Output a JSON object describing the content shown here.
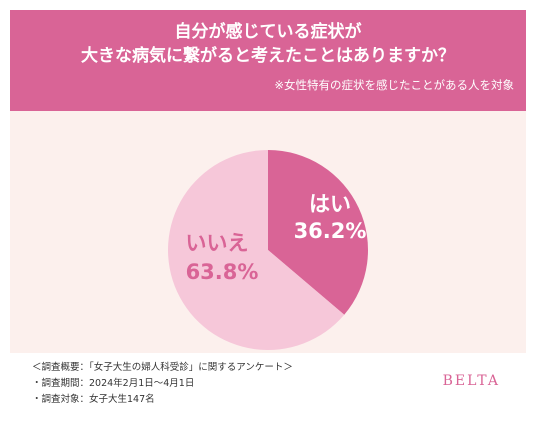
{
  "header": {
    "title_line1": "自分が感じている症状が",
    "title_line2": "大きな病気に繋がると考えたことはありますか？",
    "subtitle": "※女性特有の症状を感じたことがある人を対象"
  },
  "chart_data": {
    "type": "pie",
    "title": "自分が感じている症状が大きな病気に繋がると考えたことはありますか？",
    "slices": [
      {
        "label": "はい",
        "value": 36.2,
        "value_label": "36.2%",
        "color": "#d96496"
      },
      {
        "label": "いいえ",
        "value": 63.8,
        "value_label": "63.8%",
        "color": "#f6c7d9"
      }
    ],
    "label_colors": {
      "はい": "#ffffff",
      "いいえ": "#d96496"
    },
    "legend": "none"
  },
  "footer": {
    "survey_title": "＜調査概要：「女子大生の婦人科受診」に関するアンケート＞",
    "survey_period": "・調査期間：2024年2月1日〜4月1日",
    "survey_target": "・調査対象：女子大生147名",
    "brand": "BELTA"
  },
  "colors": {
    "header_bg": "#d96496",
    "card_bg": "#fcf0ed",
    "accent": "#d96496"
  }
}
